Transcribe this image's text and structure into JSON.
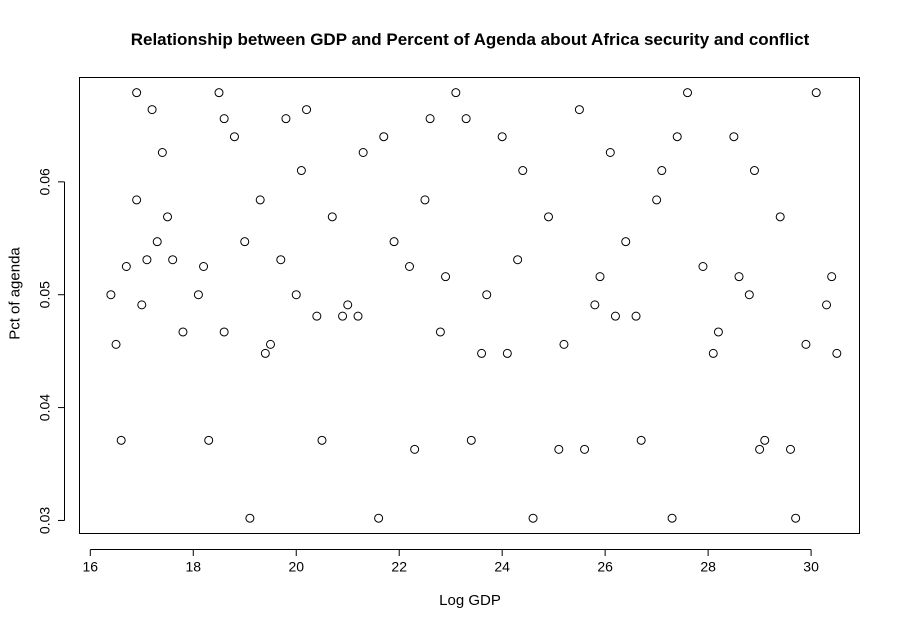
{
  "chart_data": {
    "type": "scatter",
    "title": "Relationship between GDP and Percent of Agenda about Africa security and conflict",
    "xlabel": "Log GDP",
    "ylabel": "Pct of agenda",
    "xlim": [
      15.8,
      30.95
    ],
    "ylim": [
      0.0288,
      0.0692
    ],
    "xticks": [
      16,
      18,
      20,
      22,
      24,
      26,
      28,
      30
    ],
    "yticks": [
      0.03,
      0.04,
      0.05,
      0.06
    ],
    "ytick_labels": [
      "0.03",
      "0.04",
      "0.05",
      "0.06"
    ],
    "marker": "open-circle",
    "grid": false,
    "legend": "none",
    "x": [
      16.4,
      16.5,
      16.6,
      16.7,
      16.9,
      16.9,
      17.0,
      17.1,
      17.2,
      17.3,
      17.4,
      17.5,
      17.6,
      17.8,
      18.1,
      18.2,
      18.3,
      18.5,
      18.6,
      18.8,
      19.0,
      19.1,
      19.3,
      19.5,
      19.7,
      20.0,
      20.2,
      20.5,
      20.7,
      21.0,
      21.3,
      21.6,
      21.9,
      22.2,
      22.5,
      22.8,
      23.1,
      23.4,
      23.7,
      24.0,
      24.3,
      24.6,
      24.9,
      25.2,
      25.5,
      25.8,
      26.1,
      26.4,
      26.7,
      27.0,
      27.3,
      27.6,
      27.9,
      28.2,
      28.5,
      28.8,
      29.1,
      29.4,
      29.7,
      29.9,
      30.1,
      30.3,
      30.5,
      18.6,
      19.4,
      20.1,
      20.9,
      21.7,
      22.3,
      22.9,
      23.6,
      24.4,
      25.1,
      25.9,
      26.6,
      27.4,
      28.1,
      28.9,
      29.6,
      30.4,
      19.8,
      21.2,
      22.6,
      24.1,
      25.6,
      27.1,
      28.6,
      20.4,
      23.3,
      26.2,
      29.0
    ],
    "y": [
      0.05,
      0.0456,
      0.0371,
      0.0525,
      0.0584,
      0.0679,
      0.0491,
      0.0531,
      0.0664,
      0.0547,
      0.0626,
      0.0569,
      0.0531,
      0.0467,
      0.05,
      0.0525,
      0.0371,
      0.0679,
      0.0467,
      0.064,
      0.0547,
      0.0302,
      0.0584,
      0.0456,
      0.0531,
      0.05,
      0.0664,
      0.0371,
      0.0569,
      0.0491,
      0.0626,
      0.0302,
      0.0547,
      0.0525,
      0.0584,
      0.0467,
      0.0679,
      0.0371,
      0.05,
      0.064,
      0.0531,
      0.0302,
      0.0569,
      0.0456,
      0.0664,
      0.0491,
      0.0626,
      0.0547,
      0.0371,
      0.0584,
      0.0302,
      0.0679,
      0.0525,
      0.0467,
      0.064,
      0.05,
      0.0371,
      0.0569,
      0.0302,
      0.0456,
      0.0679,
      0.0491,
      0.0448,
      0.0656,
      0.0448,
      0.061,
      0.0481,
      0.064,
      0.0363,
      0.0516,
      0.0448,
      0.061,
      0.0363,
      0.0516,
      0.0481,
      0.064,
      0.0448,
      0.061,
      0.0363,
      0.0516,
      0.0656,
      0.0481,
      0.0656,
      0.0448,
      0.0363,
      0.061,
      0.0516,
      0.0481,
      0.0656,
      0.0481,
      0.0363
    ]
  }
}
